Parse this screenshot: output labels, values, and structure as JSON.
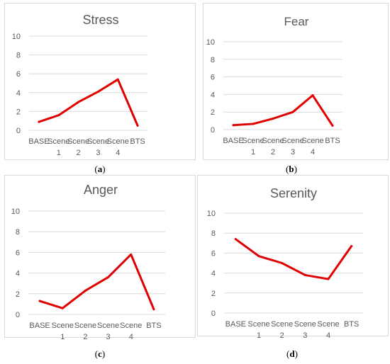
{
  "captions": {
    "a": {
      "open": "(",
      "letter": "a",
      "close": ")"
    },
    "b": {
      "open": "(",
      "letter": "b",
      "close": ")"
    },
    "c": {
      "open": "(",
      "letter": "c",
      "close": ")"
    },
    "d": {
      "open": "(",
      "letter": "d",
      "close": ")"
    }
  },
  "chart_data": [
    {
      "id": "a",
      "type": "line",
      "title": "Stress",
      "categories": [
        [
          "BASE"
        ],
        [
          "Scene",
          "1"
        ],
        [
          "Scene",
          "2"
        ],
        [
          "Scene",
          "3"
        ],
        [
          "Scene",
          "4"
        ],
        [
          "BTS"
        ]
      ],
      "series": [
        {
          "values": [
            0.9,
            1.6,
            3.0,
            4.1,
            5.4,
            0.5
          ]
        }
      ],
      "ylim": [
        0,
        10
      ],
      "yticks": [
        0,
        2,
        4,
        6,
        8,
        10
      ],
      "grid": true,
      "color": "#e00000"
    },
    {
      "id": "b",
      "type": "line",
      "title": "Fear",
      "categories": [
        [
          "BASE"
        ],
        [
          "Scene",
          "1"
        ],
        [
          "Scene",
          "2"
        ],
        [
          "Scene",
          "3"
        ],
        [
          "Scene",
          "4"
        ],
        [
          "BTS"
        ]
      ],
      "series": [
        {
          "values": [
            0.5,
            0.65,
            1.25,
            2.0,
            3.9,
            0.45
          ]
        }
      ],
      "ylim": [
        0,
        10
      ],
      "yticks": [
        0,
        2,
        4,
        6,
        8,
        10
      ],
      "grid": true,
      "color": "#e00000"
    },
    {
      "id": "c",
      "type": "line",
      "title": "Anger",
      "categories": [
        [
          "BASE"
        ],
        [
          "Scene",
          "1"
        ],
        [
          "Scene",
          "2"
        ],
        [
          "Scene",
          "3"
        ],
        [
          "Scene",
          "4"
        ],
        [
          "BTS"
        ]
      ],
      "series": [
        {
          "values": [
            1.3,
            0.6,
            2.3,
            3.6,
            5.8,
            0.5
          ]
        }
      ],
      "ylim": [
        0,
        10
      ],
      "yticks": [
        0,
        2,
        4,
        6,
        8,
        10
      ],
      "grid": true,
      "color": "#e00000"
    },
    {
      "id": "d",
      "type": "line",
      "title": "Serenity",
      "categories": [
        [
          "BASE"
        ],
        [
          "Scene",
          "1"
        ],
        [
          "Scene",
          "2"
        ],
        [
          "Scene",
          "3"
        ],
        [
          "Scene",
          "4"
        ],
        [
          "BTS"
        ]
      ],
      "series": [
        {
          "values": [
            7.4,
            5.7,
            5.0,
            3.8,
            3.4,
            6.7
          ]
        }
      ],
      "ylim": [
        0,
        10
      ],
      "yticks": [
        0,
        2,
        4,
        6,
        8,
        10
      ],
      "grid": true,
      "color": "#e00000"
    }
  ]
}
